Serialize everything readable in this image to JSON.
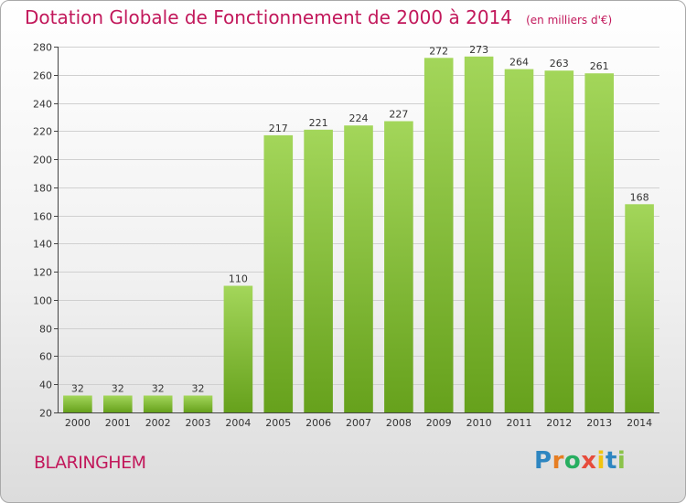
{
  "title": "Dotation Globale de Fonctionnement de 2000 à 2014",
  "unit_note": "(en milliers d'€)",
  "commune": "BLARINGHEM",
  "brand": {
    "letters": [
      "P",
      "r",
      "o",
      "x",
      "i",
      "t",
      "i"
    ],
    "colors": [
      "#2e86c1",
      "#e67e22",
      "#27ae60",
      "#e74c3c",
      "#f1c40f",
      "#2e86c1",
      "#8bc34a"
    ]
  },
  "colors": {
    "bar_top": "#a3d65a",
    "bar_bottom": "#66a11c",
    "title": "#c2185b",
    "grid": "#d0d0d0"
  },
  "chart_data": {
    "type": "bar",
    "categories": [
      "2000",
      "2001",
      "2002",
      "2003",
      "2004",
      "2005",
      "2006",
      "2007",
      "2008",
      "2009",
      "2010",
      "2011",
      "2012",
      "2013",
      "2014"
    ],
    "values": [
      32,
      32,
      32,
      32,
      110,
      217,
      221,
      224,
      227,
      272,
      273,
      264,
      263,
      261,
      168
    ],
    "title": "Dotation Globale de Fonctionnement de 2000 à 2014",
    "ylim": [
      20,
      280
    ],
    "yticks": [
      20,
      40,
      60,
      80,
      100,
      120,
      140,
      160,
      180,
      200,
      220,
      240,
      260,
      280
    ],
    "grid": true,
    "legend": "none"
  }
}
